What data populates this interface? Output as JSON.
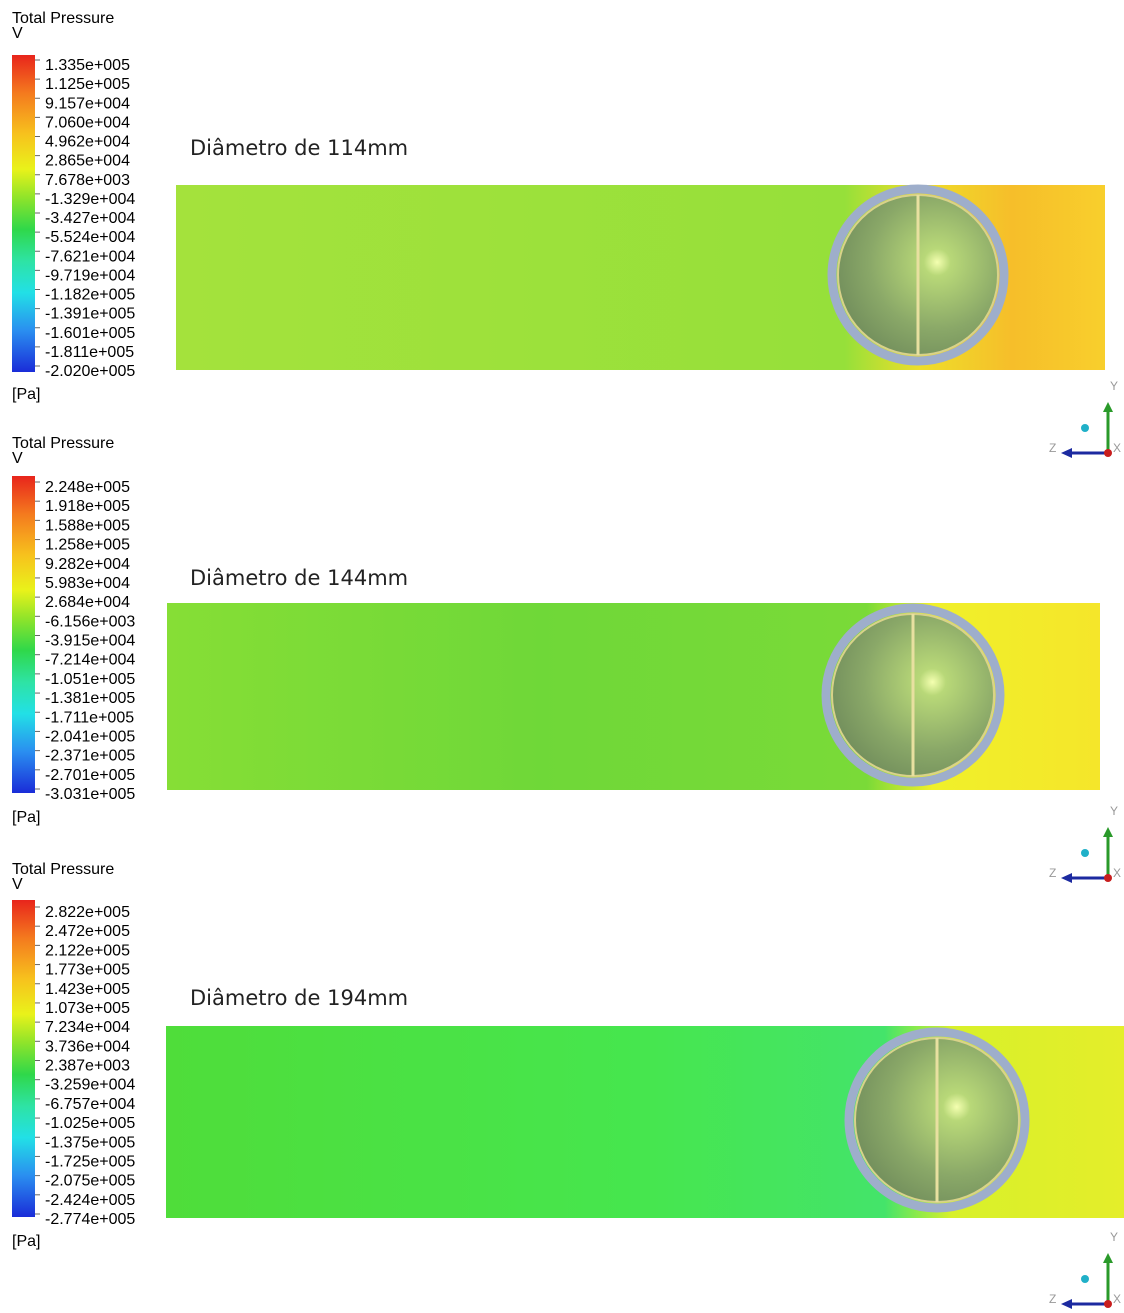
{
  "panels": [
    {
      "legend": {
        "title": "Total Pressure",
        "variable": "V",
        "ticks": [
          "1.335e+005",
          "1.125e+005",
          "9.157e+004",
          "7.060e+004",
          "4.962e+004",
          "2.865e+004",
          "7.678e+003",
          "-1.329e+004",
          "-3.427e+004",
          "-5.524e+004",
          "-7.621e+004",
          "-9.719e+004",
          "-1.182e+005",
          "-1.391e+005",
          "-1.601e+005",
          "-1.811e+005",
          "-2.020e+005"
        ],
        "unit": "[Pa]"
      },
      "caption": "Diâmetro de 114mm",
      "axes": {
        "y": "Y",
        "z": "Z",
        "x": "X"
      }
    },
    {
      "legend": {
        "title": "Total Pressure",
        "variable": "V",
        "ticks": [
          "2.248e+005",
          "1.918e+005",
          "1.588e+005",
          "1.258e+005",
          "9.282e+004",
          "5.983e+004",
          "2.684e+004",
          "-6.156e+003",
          "-3.915e+004",
          "-7.214e+004",
          "-1.051e+005",
          "-1.381e+005",
          "-1.711e+005",
          "-2.041e+005",
          "-2.371e+005",
          "-2.701e+005",
          "-3.031e+005"
        ],
        "unit": "[Pa]"
      },
      "caption": "Diâmetro de 144mm",
      "axes": {
        "y": "Y",
        "z": "Z",
        "x": "X"
      }
    },
    {
      "legend": {
        "title": "Total Pressure",
        "variable": "V",
        "ticks": [
          "2.822e+005",
          "2.472e+005",
          "2.122e+005",
          "1.773e+005",
          "1.423e+005",
          "1.073e+005",
          "7.234e+004",
          "3.736e+004",
          "2.387e+003",
          "-3.259e+004",
          "-6.757e+004",
          "-1.025e+005",
          "-1.375e+005",
          "-1.725e+005",
          "-2.075e+005",
          "-2.424e+005",
          "-2.774e+005"
        ],
        "unit": "[Pa]"
      },
      "caption": "Diâmetro de 194mm",
      "axes": {
        "y": "Y",
        "z": "Z",
        "x": "X"
      }
    }
  ]
}
